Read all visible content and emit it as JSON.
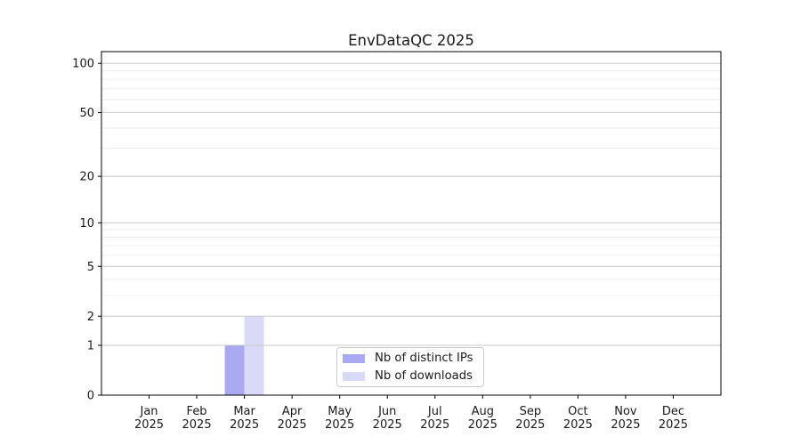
{
  "chart_data": {
    "type": "bar",
    "title": "EnvDataQC 2025",
    "categories": [
      "Jan",
      "Feb",
      "Mar",
      "Apr",
      "May",
      "Jun",
      "Jul",
      "Aug",
      "Sep",
      "Oct",
      "Nov",
      "Dec"
    ],
    "year_label": "2025",
    "series": [
      {
        "name": "Nb of distinct IPs",
        "color": "#a9a9f2",
        "values": [
          0,
          0,
          1,
          0,
          0,
          0,
          0,
          0,
          0,
          0,
          0,
          0
        ]
      },
      {
        "name": "Nb of downloads",
        "color": "#d9d9f8",
        "values": [
          0,
          0,
          2,
          0,
          0,
          0,
          0,
          0,
          0,
          0,
          0,
          0
        ]
      }
    ],
    "yscale": "log1p",
    "yticks": [
      0,
      1,
      2,
      5,
      10,
      20,
      50,
      100
    ],
    "minor_yticks": [
      3,
      4,
      6,
      7,
      8,
      9,
      30,
      40,
      60,
      70,
      80,
      90
    ],
    "ylim": [
      0,
      118
    ],
    "grid": true,
    "legend_position": "bottom-center",
    "colors": {
      "axis": "#000000",
      "major_grid": "#c8c8c8",
      "minor_grid": "#ececec",
      "background": "#ffffff",
      "text": "#1a1a1a"
    }
  }
}
